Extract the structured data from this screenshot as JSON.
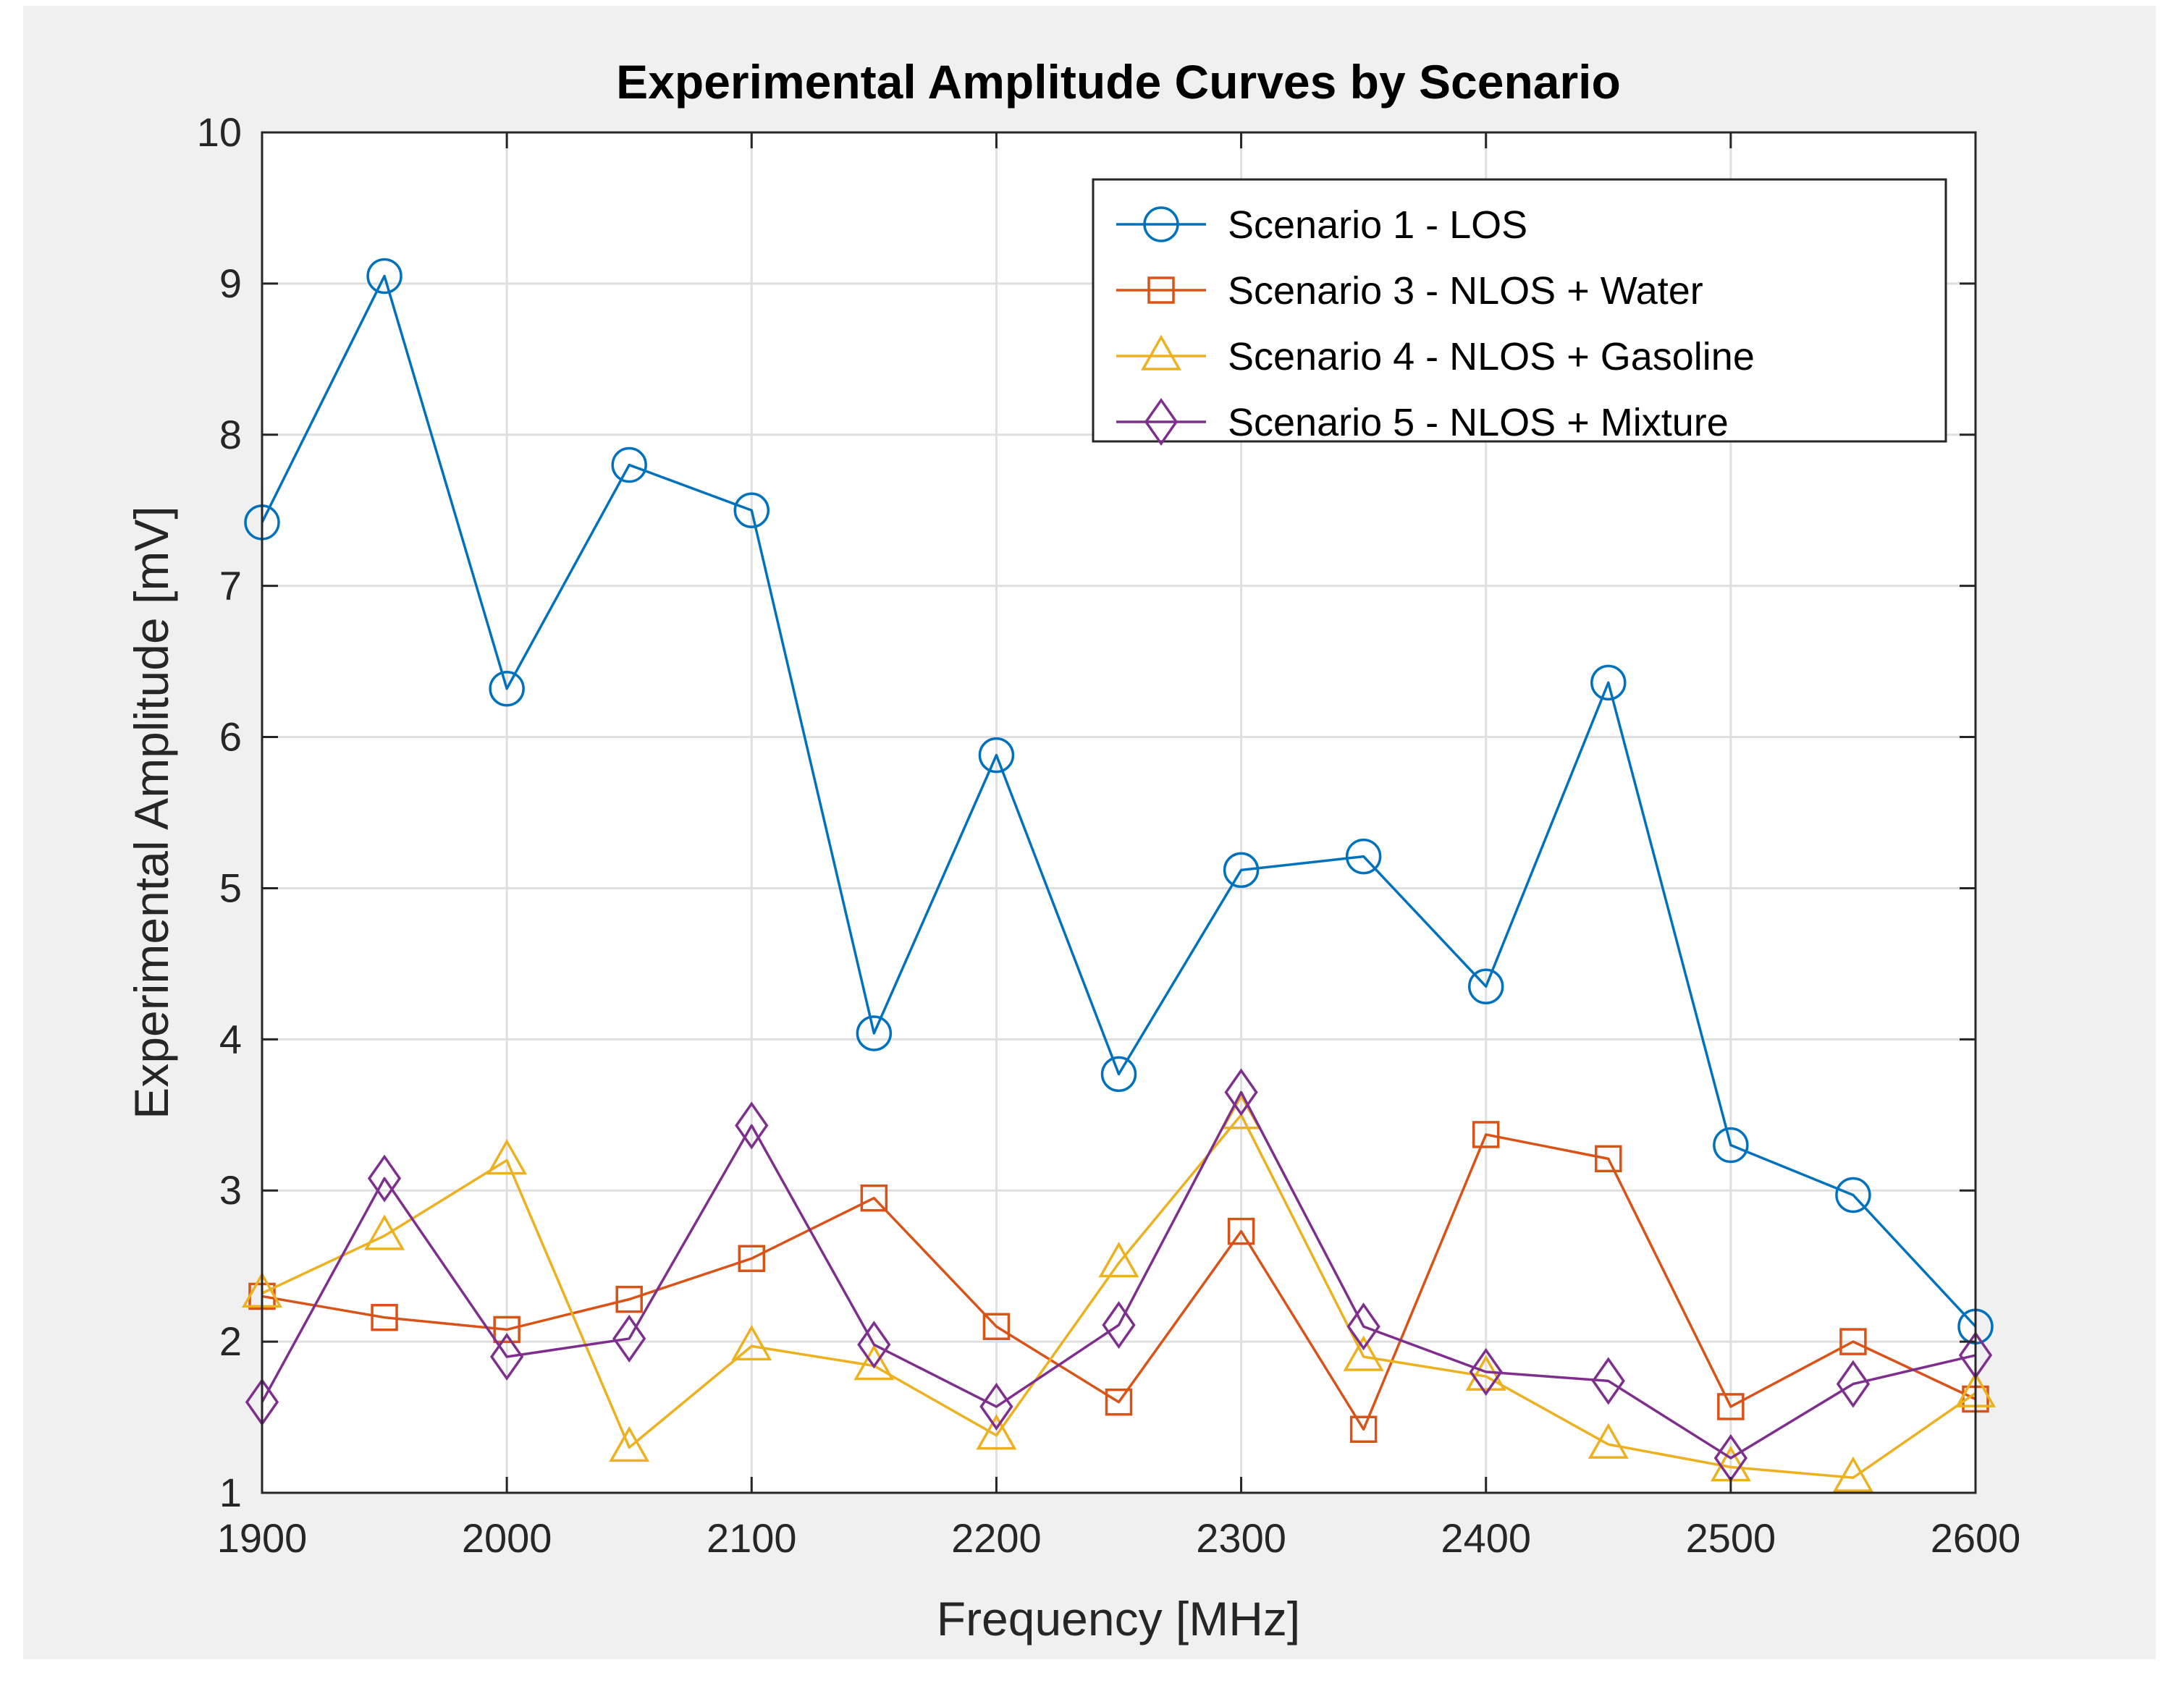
{
  "chart_data": {
    "type": "line",
    "title": "Experimental Amplitude Curves by Scenario",
    "xlabel": "Frequency [MHz]",
    "ylabel": "Experimental Amplitude [mV]",
    "xlim": [
      1900,
      2600
    ],
    "ylim": [
      1,
      10
    ],
    "xticks": [
      1900,
      2000,
      2100,
      2200,
      2300,
      2400,
      2500,
      2600
    ],
    "yticks": [
      1,
      2,
      3,
      4,
      5,
      6,
      7,
      8,
      9,
      10
    ],
    "grid": true,
    "legend_position": "top-right",
    "x": [
      1900,
      1950,
      2000,
      2050,
      2100,
      2150,
      2200,
      2250,
      2300,
      2350,
      2400,
      2450,
      2500,
      2550,
      2600
    ],
    "series": [
      {
        "name": "Scenario 1 - LOS",
        "color": "#0072BD",
        "marker": "circle",
        "values": [
          7.42,
          9.05,
          6.32,
          7.8,
          7.5,
          4.04,
          5.88,
          3.77,
          5.12,
          5.21,
          4.35,
          6.36,
          3.3,
          2.97,
          2.1
        ]
      },
      {
        "name": "Scenario 3 - NLOS + Water",
        "color": "#D95319",
        "marker": "square",
        "values": [
          2.3,
          2.16,
          2.08,
          2.28,
          2.55,
          2.95,
          2.1,
          1.6,
          2.73,
          1.42,
          3.37,
          3.21,
          1.57,
          2.0,
          1.62
        ]
      },
      {
        "name": "Scenario 4 - NLOS + Gasoline",
        "color": "#EDB120",
        "marker": "triangle",
        "values": [
          2.32,
          2.7,
          3.2,
          1.3,
          1.97,
          1.84,
          1.38,
          2.52,
          3.5,
          1.9,
          1.77,
          1.32,
          1.17,
          1.1,
          1.66
        ]
      },
      {
        "name": "Scenario 5 - NLOS + Mixture",
        "color": "#7E2F8E",
        "marker": "diamond",
        "values": [
          1.6,
          3.08,
          1.9,
          2.02,
          3.43,
          1.98,
          1.57,
          2.11,
          3.65,
          2.1,
          1.8,
          1.74,
          1.23,
          1.72,
          1.91
        ]
      }
    ]
  }
}
